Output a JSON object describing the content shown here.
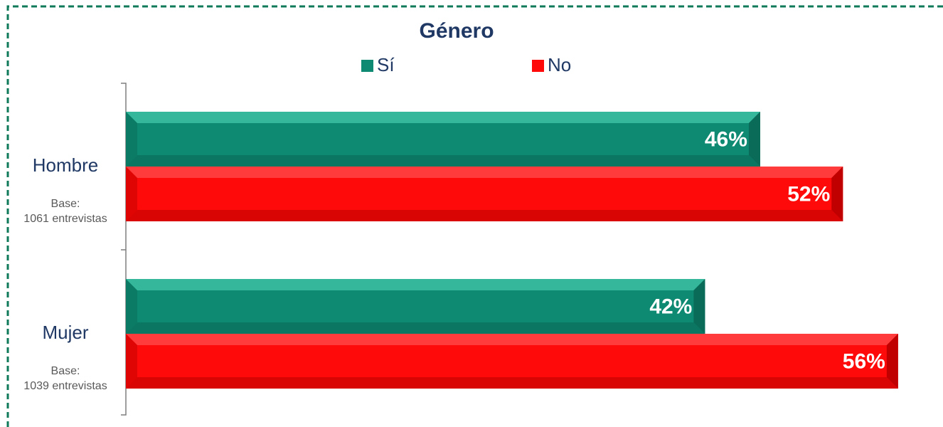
{
  "chart_data": {
    "type": "hbar",
    "title": "Género",
    "categories": [
      "Hombre",
      "Mujer"
    ],
    "category_notes": [
      [
        "Base:",
        "1061 entrevistas"
      ],
      [
        "Base:",
        "1039 entrevistas"
      ]
    ],
    "series": [
      {
        "name": "Sí",
        "color": "#0e8a72",
        "values": [
          46,
          42
        ],
        "value_labels": [
          "46%",
          "42%"
        ]
      },
      {
        "name": "No",
        "color": "#ff0a0a",
        "values": [
          52,
          56
        ],
        "value_labels": [
          "52%",
          "56%"
        ]
      }
    ],
    "xlim": [
      0,
      59
    ]
  }
}
